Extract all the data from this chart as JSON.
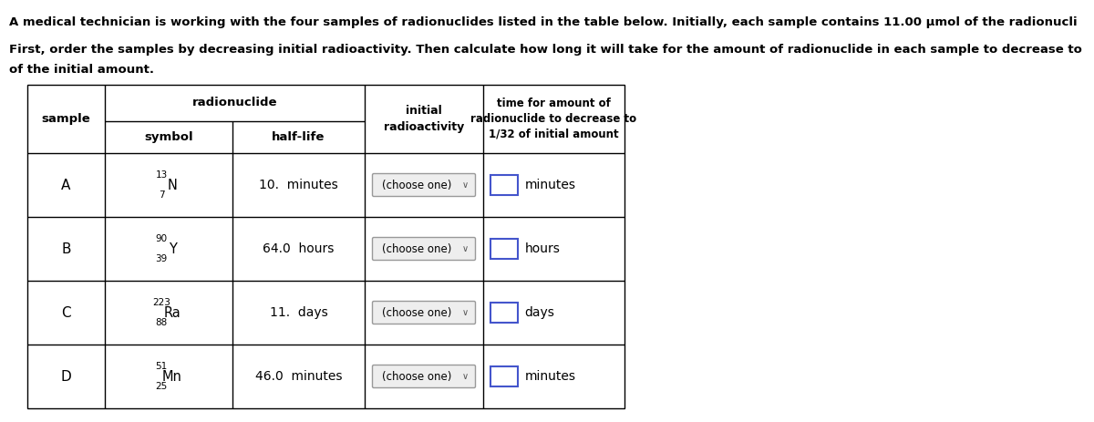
{
  "title_line1": "A medical technician is working with the four samples of radionuclides listed in the table below. Initially, each sample contains 11.00 μmol of the radionucli",
  "title_line2": "First, order the samples by decreasing initial radioactivity. Then calculate how long it will take for the amount of radionuclide in each sample to decrease to",
  "title_line3": "of the initial amount.",
  "samples": [
    "A",
    "B",
    "C",
    "D"
  ],
  "mass_numbers": [
    "13",
    "90",
    "223",
    "51"
  ],
  "atomic_numbers": [
    "7",
    "39",
    "88",
    "25"
  ],
  "symbols": [
    "N",
    "Y",
    "Ra",
    "Mn"
  ],
  "half_lives": [
    "10.  minutes",
    "64.0  hours",
    "11.  days",
    "46.0  minutes"
  ],
  "time_units": [
    "minutes",
    "hours",
    "days",
    "minutes"
  ],
  "choose_one_text": "(choose one)",
  "col_header_radionuclide": "radionuclide",
  "col_header_symbol": "symbol",
  "col_header_halflife": "half-life",
  "bg_color": "#ffffff",
  "table_line_color": "#000000",
  "text_color": "#000000"
}
